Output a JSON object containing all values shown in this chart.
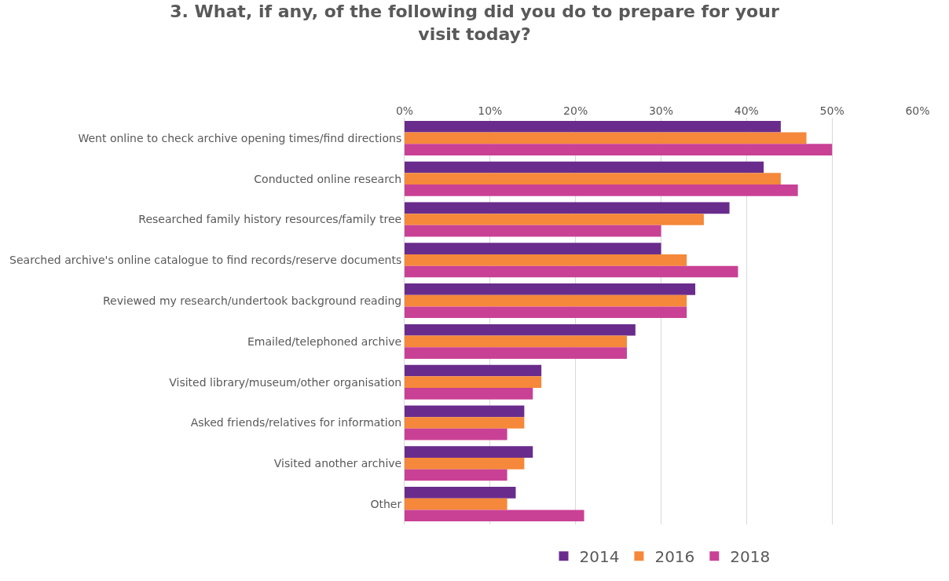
{
  "chart_data": {
    "type": "bar",
    "orientation": "horizontal",
    "title": "3. What, if any, of the following did you do to prepare for your visit today?",
    "categories": [
      "Went online to check archive opening times/find directions",
      "Conducted online research",
      "Researched family history resources/family tree",
      "Searched archive's online catalogue to find records/reserve documents",
      "Reviewed my research/undertook background reading",
      "Emailed/telephoned archive",
      "Visited library/museum/other organisation",
      "Asked friends/relatives for information",
      "Visited another archive",
      "Other"
    ],
    "series": [
      {
        "name": "2014",
        "color": "#6a2c8c",
        "values": [
          44,
          42,
          38,
          30,
          34,
          27,
          16,
          14,
          15,
          13
        ]
      },
      {
        "name": "2016",
        "color": "#f5883a",
        "values": [
          47,
          44,
          35,
          33,
          33,
          26,
          16,
          14,
          14,
          12
        ]
      },
      {
        "name": "2018",
        "color": "#c94195",
        "values": [
          50,
          46,
          30,
          39,
          33,
          26,
          15,
          12,
          12,
          21
        ]
      }
    ],
    "xlim": [
      0,
      60
    ],
    "xticks": [
      {
        "value": 0,
        "label": "0%"
      },
      {
        "value": 10,
        "label": "10%"
      },
      {
        "value": 20,
        "label": "20%"
      },
      {
        "value": 30,
        "label": "30%"
      },
      {
        "value": 40,
        "label": "40%"
      },
      {
        "value": 50,
        "label": "50%"
      },
      {
        "value": 60,
        "label": "60%"
      }
    ],
    "grid": "x",
    "legend": "bottom"
  }
}
